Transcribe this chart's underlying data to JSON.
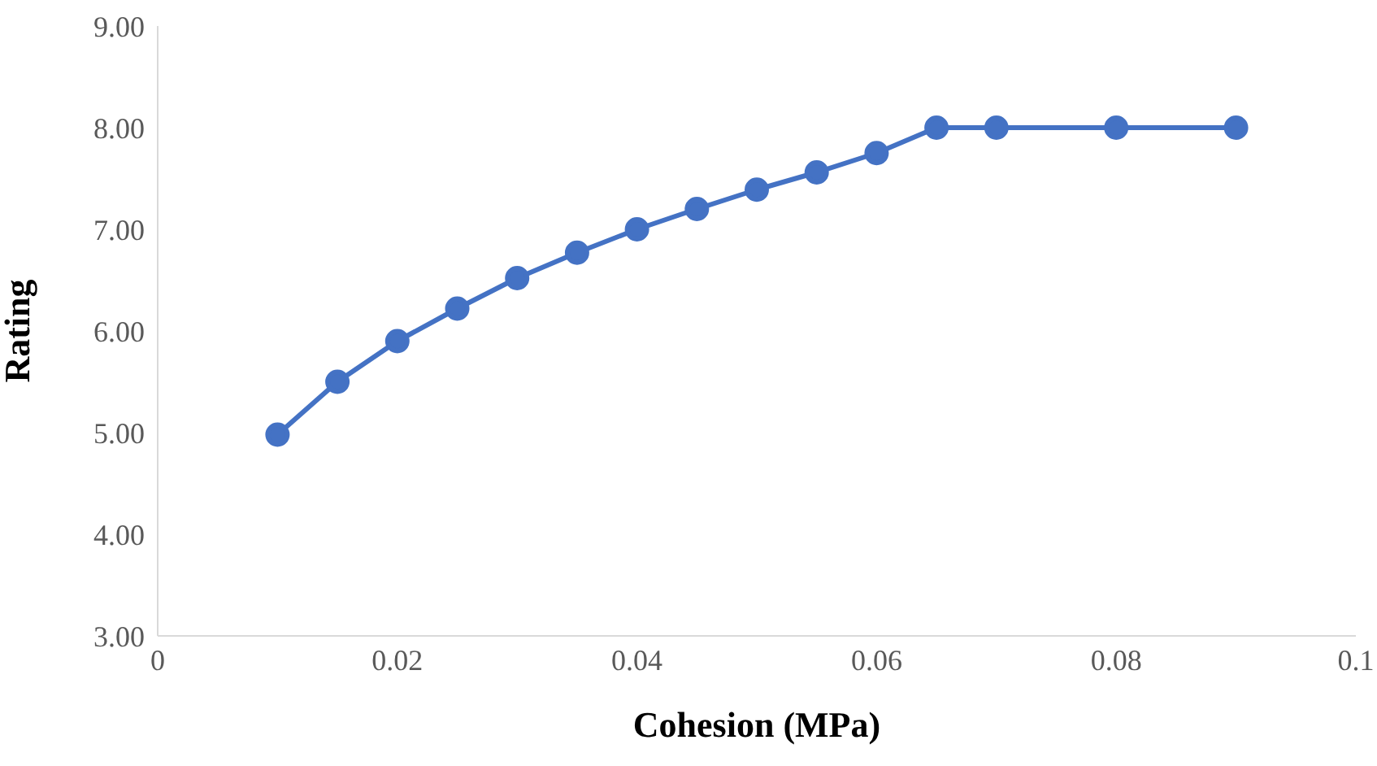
{
  "chart_data": {
    "type": "line",
    "xlabel": "Cohesion (MPa)",
    "ylabel": "Rating",
    "x": [
      0.01,
      0.015,
      0.02,
      0.025,
      0.03,
      0.035,
      0.04,
      0.045,
      0.05,
      0.055,
      0.06,
      0.065,
      0.07,
      0.08,
      0.09
    ],
    "series": [
      {
        "color": "#4472c4",
        "values": [
          4.98,
          5.5,
          5.9,
          6.22,
          6.52,
          6.77,
          7.0,
          7.2,
          7.39,
          7.56,
          7.75,
          8.0,
          8.0,
          8.0,
          8.0
        ]
      }
    ],
    "xlim": [
      0,
      0.1
    ],
    "xticks": [
      0,
      0.02,
      0.04,
      0.06,
      0.08,
      0.1
    ],
    "ylim": [
      3,
      9
    ],
    "yticks": [
      {
        "value": 3,
        "label": "3.00"
      },
      {
        "value": 4,
        "label": "4.00"
      },
      {
        "value": 5,
        "label": "5.00"
      },
      {
        "value": 6,
        "label": "6.00"
      },
      {
        "value": 7,
        "label": "7.00"
      },
      {
        "value": 8,
        "label": "8.00"
      },
      {
        "value": 9,
        "label": "9.00"
      }
    ],
    "grid": false,
    "legend": false,
    "marker": "circle",
    "line_style": "solid"
  }
}
